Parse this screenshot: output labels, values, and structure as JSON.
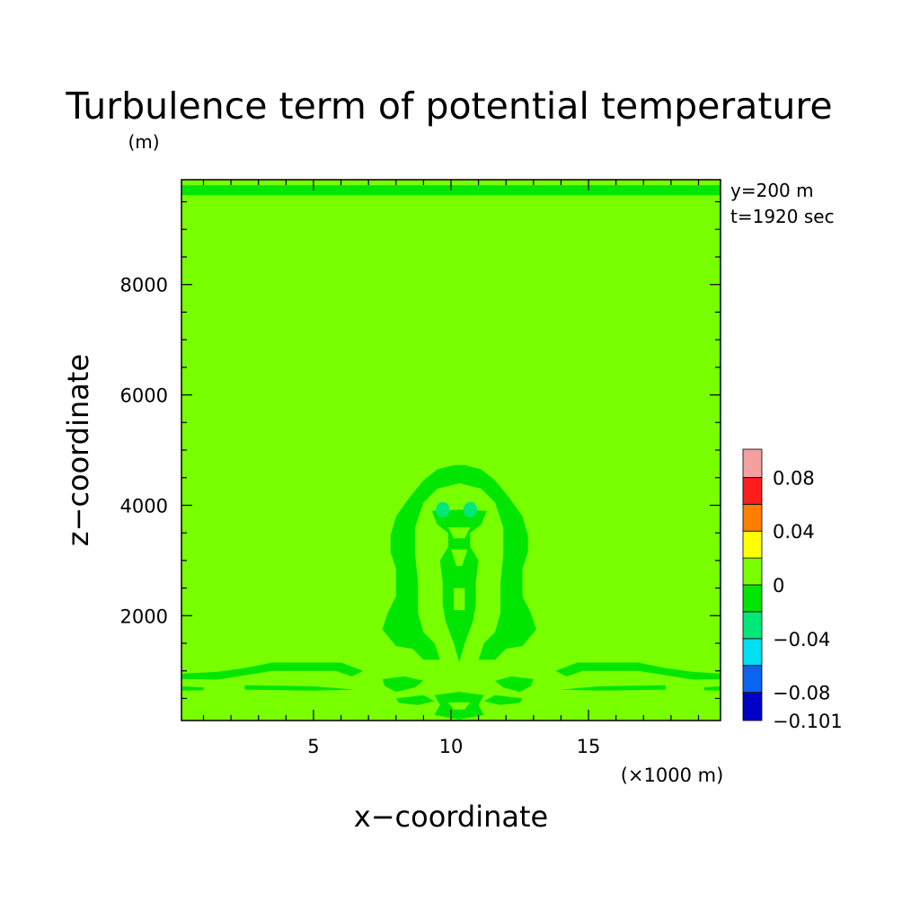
{
  "chart_data": {
    "type": "heatmap",
    "title": "Turbulence term of potential temperature",
    "y_unit": "(m)",
    "x_unit": "(×1000 m)",
    "xlabel": "x−coordinate",
    "ylabel": "z−coordinate",
    "annotations": [
      "y=200 m",
      "t=1920 sec"
    ],
    "xlim": [
      0.2,
      19.8
    ],
    "ylim": [
      100,
      9900
    ],
    "x_ticks": [
      5,
      10,
      15
    ],
    "x_tick_labels": [
      "5",
      "10",
      "15"
    ],
    "y_ticks": [
      2000,
      4000,
      6000,
      8000
    ],
    "y_tick_labels": [
      "2000",
      "4000",
      "6000",
      "8000"
    ],
    "colorbar": {
      "levels": [
        -0.101,
        -0.08,
        -0.06,
        -0.04,
        -0.02,
        0,
        0.02,
        0.04,
        0.06,
        0.08,
        0.101
      ],
      "colors": [
        "#0000c8",
        "#0a64f0",
        "#00e0f0",
        "#00e87a",
        "#00e600",
        "#78ff00",
        "#ffff00",
        "#ff7f00",
        "#ff1e1e",
        "#f5a0a0"
      ],
      "labels": [
        {
          "value": 0.08,
          "text": "0.08"
        },
        {
          "value": 0.04,
          "text": "0.04"
        },
        {
          "value": 0,
          "text": "0"
        },
        {
          "value": -0.04,
          "text": "−0.04"
        },
        {
          "value": -0.08,
          "text": "−0.08"
        },
        {
          "value": -0.101,
          "text": "−0.101"
        }
      ]
    },
    "background_color": "#78ff00",
    "regions": [
      {
        "name": "top-band",
        "level": -0.01,
        "color": "#00e600",
        "points": [
          [
            0.2,
            9620
          ],
          [
            19.8,
            9620
          ],
          [
            19.8,
            9800
          ],
          [
            0.2,
            9800
          ]
        ]
      },
      {
        "name": "plume-outer-ring",
        "level": -0.01,
        "color": "#00e600",
        "points": [
          [
            10.5,
            4730
          ],
          [
            11.1,
            4650
          ],
          [
            11.6,
            4450
          ],
          [
            12.1,
            4150
          ],
          [
            12.6,
            3800
          ],
          [
            12.8,
            3450
          ],
          [
            12.8,
            3150
          ],
          [
            12.6,
            2850
          ],
          [
            12.6,
            2350
          ],
          [
            12.9,
            2050
          ],
          [
            13.1,
            1750
          ],
          [
            12.6,
            1450
          ],
          [
            12.0,
            1400
          ],
          [
            11.6,
            1200
          ],
          [
            11.0,
            1200
          ],
          [
            11.2,
            1500
          ],
          [
            11.6,
            1700
          ],
          [
            11.8,
            2050
          ],
          [
            11.8,
            2600
          ],
          [
            11.9,
            3100
          ],
          [
            11.9,
            3600
          ],
          [
            11.6,
            4050
          ],
          [
            11.1,
            4300
          ],
          [
            10.3,
            4400
          ],
          [
            9.5,
            4300
          ],
          [
            9.0,
            4050
          ],
          [
            8.7,
            3600
          ],
          [
            8.7,
            3100
          ],
          [
            8.8,
            2600
          ],
          [
            8.8,
            2050
          ],
          [
            9.0,
            1700
          ],
          [
            9.4,
            1500
          ],
          [
            9.6,
            1200
          ],
          [
            9.0,
            1200
          ],
          [
            8.6,
            1400
          ],
          [
            8.0,
            1450
          ],
          [
            7.5,
            1750
          ],
          [
            7.7,
            2050
          ],
          [
            8.0,
            2350
          ],
          [
            8.0,
            2850
          ],
          [
            7.8,
            3150
          ],
          [
            7.8,
            3450
          ],
          [
            8.0,
            3800
          ],
          [
            8.5,
            4150
          ],
          [
            9.0,
            4450
          ],
          [
            9.5,
            4650
          ],
          [
            10.1,
            4730
          ]
        ]
      },
      {
        "name": "plume-core",
        "level": -0.01,
        "color": "#00e600",
        "points": [
          [
            9.3,
            3900
          ],
          [
            10.3,
            3920
          ],
          [
            11.3,
            3900
          ],
          [
            11.1,
            3650
          ],
          [
            10.7,
            3500
          ],
          [
            10.7,
            3250
          ],
          [
            11.0,
            3000
          ],
          [
            10.9,
            2600
          ],
          [
            10.9,
            2200
          ],
          [
            10.8,
            1900
          ],
          [
            10.5,
            1500
          ],
          [
            10.3,
            1150
          ],
          [
            10.1,
            1500
          ],
          [
            9.8,
            1900
          ],
          [
            9.7,
            2200
          ],
          [
            9.7,
            2600
          ],
          [
            9.6,
            3000
          ],
          [
            9.9,
            3250
          ],
          [
            9.9,
            3500
          ],
          [
            9.5,
            3650
          ]
        ]
      },
      {
        "name": "plume-core-hole",
        "level": 0.005,
        "color": "#78ff00",
        "points": [
          [
            9.9,
            3600
          ],
          [
            10.7,
            3600
          ],
          [
            10.5,
            3400
          ],
          [
            10.1,
            3400
          ]
        ]
      },
      {
        "name": "plume-core-hole-2",
        "level": 0.005,
        "color": "#78ff00",
        "points": [
          [
            10.0,
            3200
          ],
          [
            10.6,
            3200
          ],
          [
            10.4,
            2900
          ],
          [
            10.2,
            2900
          ]
        ]
      },
      {
        "name": "plume-core-hole-3",
        "level": 0.005,
        "color": "#78ff00",
        "points": [
          [
            10.1,
            2500
          ],
          [
            10.5,
            2500
          ],
          [
            10.5,
            2100
          ],
          [
            10.1,
            2100
          ]
        ]
      },
      {
        "name": "left-low-band",
        "level": -0.01,
        "color": "#00e600",
        "points": [
          [
            0.2,
            950
          ],
          [
            1.5,
            980
          ],
          [
            2.5,
            1050
          ],
          [
            3.5,
            1150
          ],
          [
            6.0,
            1150
          ],
          [
            6.8,
            1000
          ],
          [
            6.4,
            900
          ],
          [
            5.8,
            1000
          ],
          [
            3.5,
            1000
          ],
          [
            2.5,
            920
          ],
          [
            1.5,
            840
          ],
          [
            0.2,
            850
          ]
        ]
      },
      {
        "name": "left-low-strip",
        "level": -0.01,
        "color": "#00e600",
        "points": [
          [
            2.5,
            740
          ],
          [
            5.0,
            720
          ],
          [
            6.5,
            660
          ],
          [
            5.0,
            640
          ],
          [
            2.5,
            660
          ]
        ]
      },
      {
        "name": "left-edge-strip",
        "level": -0.01,
        "color": "#00e600",
        "points": [
          [
            0.2,
            720
          ],
          [
            1.0,
            700
          ],
          [
            1.0,
            650
          ],
          [
            0.2,
            640
          ]
        ]
      },
      {
        "name": "right-low-band",
        "level": -0.01,
        "color": "#00e600",
        "points": [
          [
            19.8,
            950
          ],
          [
            18.8,
            980
          ],
          [
            17.8,
            1050
          ],
          [
            16.8,
            1150
          ],
          [
            14.6,
            1150
          ],
          [
            13.8,
            1000
          ],
          [
            14.2,
            900
          ],
          [
            14.8,
            1000
          ],
          [
            16.8,
            1000
          ],
          [
            17.8,
            920
          ],
          [
            18.8,
            840
          ],
          [
            19.8,
            850
          ]
        ]
      },
      {
        "name": "right-low-strip",
        "level": -0.01,
        "color": "#00e600",
        "points": [
          [
            17.8,
            740
          ],
          [
            15.4,
            720
          ],
          [
            14.0,
            660
          ],
          [
            15.4,
            640
          ],
          [
            17.8,
            660
          ]
        ]
      },
      {
        "name": "right-edge-strip",
        "level": -0.01,
        "color": "#00e600",
        "points": [
          [
            19.8,
            720
          ],
          [
            19.2,
            700
          ],
          [
            19.2,
            650
          ],
          [
            19.8,
            640
          ]
        ]
      },
      {
        "name": "base-left-fragment",
        "level": -0.01,
        "color": "#00e600",
        "points": [
          [
            7.5,
            850
          ],
          [
            8.3,
            900
          ],
          [
            9.0,
            820
          ],
          [
            8.7,
            700
          ],
          [
            8.0,
            620
          ],
          [
            7.6,
            720
          ]
        ]
      },
      {
        "name": "base-left-fragment-2",
        "level": -0.01,
        "color": "#00e600",
        "points": [
          [
            8.0,
            500
          ],
          [
            9.0,
            560
          ],
          [
            9.4,
            450
          ],
          [
            8.8,
            380
          ],
          [
            8.1,
            420
          ]
        ]
      },
      {
        "name": "base-right-fragment",
        "level": -0.01,
        "color": "#00e600",
        "points": [
          [
            13.0,
            850
          ],
          [
            12.2,
            900
          ],
          [
            11.6,
            820
          ],
          [
            11.9,
            700
          ],
          [
            12.5,
            620
          ],
          [
            12.9,
            720
          ]
        ]
      },
      {
        "name": "base-right-fragment-2",
        "level": -0.01,
        "color": "#00e600",
        "points": [
          [
            12.6,
            500
          ],
          [
            11.6,
            560
          ],
          [
            11.2,
            450
          ],
          [
            11.8,
            380
          ],
          [
            12.5,
            420
          ]
        ]
      },
      {
        "name": "base-center-fragment",
        "level": -0.01,
        "color": "#00e600",
        "points": [
          [
            9.4,
            560
          ],
          [
            10.3,
            620
          ],
          [
            11.2,
            560
          ],
          [
            11.0,
            380
          ],
          [
            11.2,
            200
          ],
          [
            10.3,
            120
          ],
          [
            9.4,
            200
          ],
          [
            9.6,
            380
          ]
        ]
      },
      {
        "name": "base-center-hole",
        "level": 0.005,
        "color": "#78ff00",
        "points": [
          [
            9.9,
            430
          ],
          [
            10.7,
            430
          ],
          [
            10.5,
            300
          ],
          [
            10.1,
            300
          ]
        ]
      }
    ],
    "spots": [
      {
        "name": "left-spot",
        "x": 9.7,
        "y": 3920,
        "rx": 0.25,
        "ry": 140,
        "level": -0.03,
        "color": "#00e87a"
      },
      {
        "name": "right-spot",
        "x": 10.7,
        "y": 3920,
        "rx": 0.25,
        "ry": 140,
        "level": -0.03,
        "color": "#00e87a"
      }
    ]
  }
}
